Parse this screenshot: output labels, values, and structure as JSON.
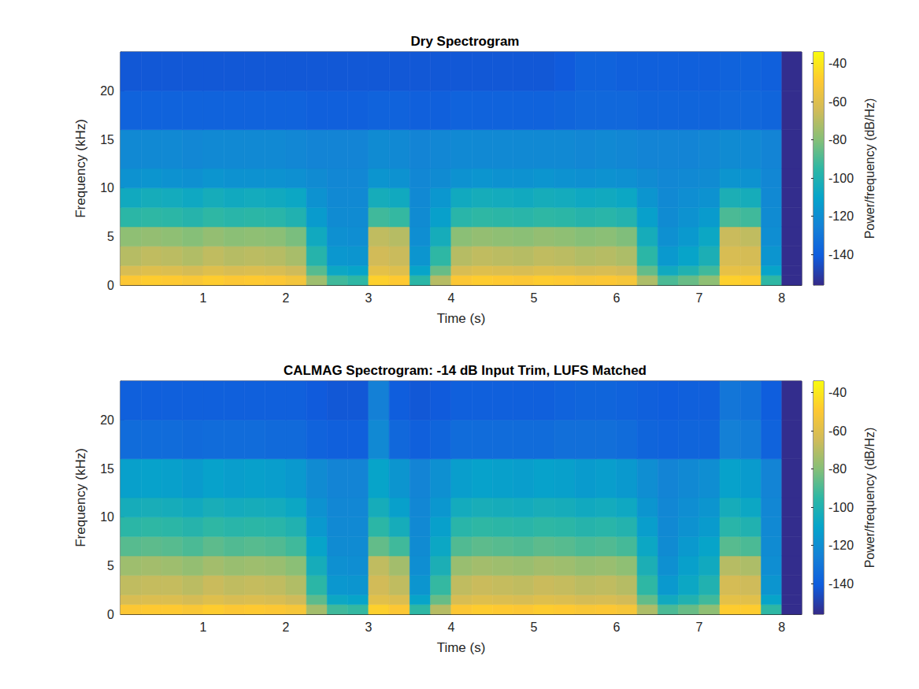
{
  "chart_data": [
    {
      "type": "heatmap",
      "title": "Dry Spectrogram",
      "x_label": "Time (s)",
      "y_label": "Frequency (kHz)",
      "xlim": [
        0,
        8.24
      ],
      "xticks": [
        1,
        2,
        3,
        4,
        5,
        6,
        7,
        8
      ],
      "ylim": [
        0,
        24
      ],
      "yticks": [
        0,
        5,
        10,
        15,
        20
      ],
      "x_bins": [
        0,
        0.25,
        0.5,
        0.75,
        1,
        1.25,
        1.5,
        1.75,
        2,
        2.25,
        2.5,
        2.75,
        3,
        3.25,
        3.5,
        3.75,
        4,
        4.25,
        4.5,
        4.75,
        5,
        5.25,
        5.5,
        5.75,
        6,
        6.25,
        6.5,
        6.75,
        7,
        7.25,
        7.5,
        7.75,
        8,
        8.24
      ],
      "y_bins": [
        0,
        1,
        2,
        4,
        6,
        8,
        10,
        12,
        16,
        20,
        24
      ],
      "cells": [
        [
          -50,
          -48,
          -49,
          -51,
          -48,
          -50,
          -49,
          -50,
          -53,
          -75,
          -92,
          -95,
          -47,
          -49,
          -96,
          -70,
          -50,
          -48,
          -49,
          -50,
          -48,
          -49,
          -51,
          -50,
          -52,
          -72,
          -90,
          -85,
          -78,
          -47,
          -48,
          -95,
          -155
        ],
        [
          -62,
          -60,
          -61,
          -63,
          -60,
          -62,
          -61,
          -62,
          -65,
          -88,
          -108,
          -110,
          -58,
          -60,
          -110,
          -85,
          -62,
          -60,
          -61,
          -62,
          -60,
          -61,
          -63,
          -62,
          -64,
          -86,
          -106,
          -100,
          -92,
          -57,
          -58,
          -110,
          -155
        ],
        [
          -70,
          -68,
          -69,
          -71,
          -68,
          -70,
          -69,
          -70,
          -73,
          -98,
          -116,
          -117,
          -64,
          -66,
          -117,
          -95,
          -70,
          -68,
          -69,
          -70,
          -68,
          -69,
          -71,
          -70,
          -72,
          -96,
          -115,
          -110,
          -102,
          -62,
          -63,
          -117,
          -155
        ],
        [
          -78,
          -77,
          -78,
          -80,
          -77,
          -79,
          -78,
          -79,
          -82,
          -106,
          -119,
          -120,
          -68,
          -70,
          -120,
          -104,
          -79,
          -77,
          -78,
          -79,
          -77,
          -78,
          -80,
          -79,
          -81,
          -104,
          -119,
          -115,
          -108,
          -66,
          -68,
          -120,
          -155
        ],
        [
          -96,
          -95,
          -96,
          -98,
          -95,
          -97,
          -96,
          -97,
          -100,
          -114,
          -121,
          -121,
          -92,
          -94,
          -121,
          -112,
          -97,
          -95,
          -96,
          -97,
          -95,
          -96,
          -98,
          -97,
          -99,
          -112,
          -121,
          -118,
          -114,
          -90,
          -92,
          -121,
          -155
        ],
        [
          -106,
          -104,
          -105,
          -107,
          -104,
          -106,
          -105,
          -106,
          -108,
          -118,
          -122,
          -122,
          -104,
          -106,
          -122,
          -116,
          -106,
          -104,
          -105,
          -106,
          -104,
          -105,
          -107,
          -106,
          -108,
          -117,
          -122,
          -120,
          -118,
          -102,
          -104,
          -122,
          -155
        ],
        [
          -118,
          -117,
          -118,
          -119,
          -117,
          -118,
          -118,
          -118,
          -119,
          -121,
          -123,
          -123,
          -117,
          -118,
          -123,
          -121,
          -118,
          -117,
          -118,
          -118,
          -117,
          -118,
          -119,
          -118,
          -119,
          -121,
          -123,
          -122,
          -121,
          -117,
          -118,
          -123,
          -155
        ],
        [
          -122,
          -122,
          -122,
          -123,
          -122,
          -122,
          -122,
          -122,
          -123,
          -124,
          -124,
          -124,
          -121,
          -122,
          -124,
          -123,
          -122,
          -122,
          -122,
          -122,
          -122,
          -122,
          -123,
          -122,
          -123,
          -124,
          -124,
          -124,
          -123,
          -121,
          -122,
          -124,
          -155
        ],
        [
          -138,
          -138,
          -138,
          -138,
          -138,
          -138,
          -138,
          -138,
          -138,
          -139,
          -139,
          -139,
          -138,
          -138,
          -139,
          -139,
          -138,
          -138,
          -138,
          -138,
          -138,
          -137,
          -136,
          -136,
          -136,
          -137,
          -137,
          -137,
          -137,
          -136,
          -136,
          -137,
          -155
        ],
        [
          -142,
          -142,
          -142,
          -142,
          -142,
          -142,
          -142,
          -142,
          -142,
          -142,
          -142,
          -142,
          -142,
          -142,
          -142,
          -142,
          -142,
          -142,
          -142,
          -142,
          -142,
          -141,
          -138,
          -138,
          -139,
          -139,
          -139,
          -139,
          -139,
          -138,
          -138,
          -139,
          -155
        ]
      ],
      "colorbar": {
        "label": "Power/frequency (dB/Hz)",
        "range": [
          -156,
          -34
        ],
        "ticks": [
          -140,
          -120,
          -100,
          -80,
          -60,
          -40
        ]
      }
    },
    {
      "type": "heatmap",
      "title": "CALMAG Spectrogram: -14 dB Input Trim, LUFS Matched",
      "x_label": "Time (s)",
      "y_label": "Frequency (kHz)",
      "xlim": [
        0,
        8.24
      ],
      "xticks": [
        1,
        2,
        3,
        4,
        5,
        6,
        7,
        8
      ],
      "ylim": [
        0,
        24
      ],
      "yticks": [
        0,
        5,
        10,
        15,
        20
      ],
      "x_bins": [
        0,
        0.25,
        0.5,
        0.75,
        1,
        1.25,
        1.5,
        1.75,
        2,
        2.25,
        2.5,
        2.75,
        3,
        3.25,
        3.5,
        3.75,
        4,
        4.25,
        4.5,
        4.75,
        5,
        5.25,
        5.5,
        5.75,
        6,
        6.25,
        6.5,
        6.75,
        7,
        7.25,
        7.5,
        7.75,
        8,
        8.24
      ],
      "y_bins": [
        0,
        1,
        2,
        4,
        6,
        8,
        10,
        12,
        16,
        20,
        24
      ],
      "cells": [
        [
          -50,
          -49,
          -49,
          -51,
          -48,
          -50,
          -49,
          -50,
          -52,
          -74,
          -92,
          -94,
          -47,
          -50,
          -95,
          -70,
          -50,
          -48,
          -49,
          -50,
          -48,
          -49,
          -51,
          -50,
          -52,
          -72,
          -90,
          -85,
          -78,
          -48,
          -48,
          -95,
          -155
        ],
        [
          -62,
          -61,
          -61,
          -63,
          -60,
          -62,
          -61,
          -62,
          -65,
          -87,
          -108,
          -110,
          -59,
          -61,
          -110,
          -85,
          -62,
          -60,
          -61,
          -62,
          -60,
          -61,
          -63,
          -62,
          -64,
          -86,
          -106,
          -100,
          -92,
          -58,
          -59,
          -110,
          -155
        ],
        [
          -68,
          -67,
          -67,
          -69,
          -66,
          -68,
          -67,
          -68,
          -71,
          -96,
          -116,
          -117,
          -64,
          -68,
          -117,
          -94,
          -68,
          -66,
          -67,
          -68,
          -66,
          -67,
          -69,
          -68,
          -70,
          -95,
          -115,
          -108,
          -100,
          -63,
          -65,
          -117,
          -155
        ],
        [
          -75,
          -74,
          -75,
          -77,
          -74,
          -76,
          -75,
          -76,
          -79,
          -104,
          -119,
          -120,
          -68,
          -74,
          -120,
          -102,
          -76,
          -74,
          -75,
          -76,
          -74,
          -75,
          -77,
          -76,
          -78,
          -102,
          -119,
          -112,
          -106,
          -70,
          -72,
          -120,
          -155
        ],
        [
          -88,
          -87,
          -88,
          -90,
          -87,
          -89,
          -88,
          -89,
          -92,
          -110,
          -121,
          -121,
          -86,
          -92,
          -121,
          -108,
          -89,
          -87,
          -88,
          -89,
          -87,
          -88,
          -90,
          -89,
          -91,
          -108,
          -121,
          -115,
          -110,
          -88,
          -90,
          -121,
          -155
        ],
        [
          -96,
          -95,
          -96,
          -98,
          -95,
          -97,
          -96,
          -97,
          -100,
          -115,
          -122,
          -122,
          -96,
          -104,
          -122,
          -112,
          -97,
          -95,
          -96,
          -97,
          -95,
          -96,
          -98,
          -97,
          -99,
          -113,
          -122,
          -118,
          -114,
          -97,
          -100,
          -122,
          -155
        ],
        [
          -104,
          -103,
          -104,
          -106,
          -103,
          -105,
          -104,
          -105,
          -108,
          -118,
          -123,
          -123,
          -104,
          -112,
          -123,
          -116,
          -105,
          -103,
          -104,
          -105,
          -103,
          -104,
          -106,
          -105,
          -107,
          -117,
          -123,
          -120,
          -117,
          -104,
          -108,
          -123,
          -155
        ],
        [
          -112,
          -111,
          -112,
          -114,
          -111,
          -113,
          -112,
          -113,
          -115,
          -121,
          -124,
          -124,
          -110,
          -117,
          -124,
          -119,
          -113,
          -111,
          -112,
          -113,
          -111,
          -112,
          -114,
          -113,
          -115,
          -120,
          -124,
          -122,
          -120,
          -111,
          -114,
          -124,
          -155
        ],
        [
          -134,
          -134,
          -134,
          -135,
          -134,
          -134,
          -134,
          -135,
          -135,
          -138,
          -139,
          -139,
          -122,
          -136,
          -139,
          -137,
          -134,
          -134,
          -134,
          -134,
          -134,
          -133,
          -133,
          -133,
          -134,
          -137,
          -138,
          -137,
          -137,
          -126,
          -128,
          -138,
          -155
        ],
        [
          -139,
          -139,
          -139,
          -139,
          -139,
          -139,
          -139,
          -139,
          -139,
          -141,
          -142,
          -142,
          -126,
          -140,
          -142,
          -141,
          -139,
          -139,
          -139,
          -139,
          -139,
          -138,
          -137,
          -137,
          -138,
          -139,
          -140,
          -139,
          -139,
          -130,
          -132,
          -140,
          -155
        ]
      ],
      "colorbar": {
        "label": "Power/frequency (dB/Hz)",
        "range": [
          -156,
          -34
        ],
        "ticks": [
          -140,
          -120,
          -100,
          -80,
          -60,
          -40
        ]
      }
    }
  ]
}
